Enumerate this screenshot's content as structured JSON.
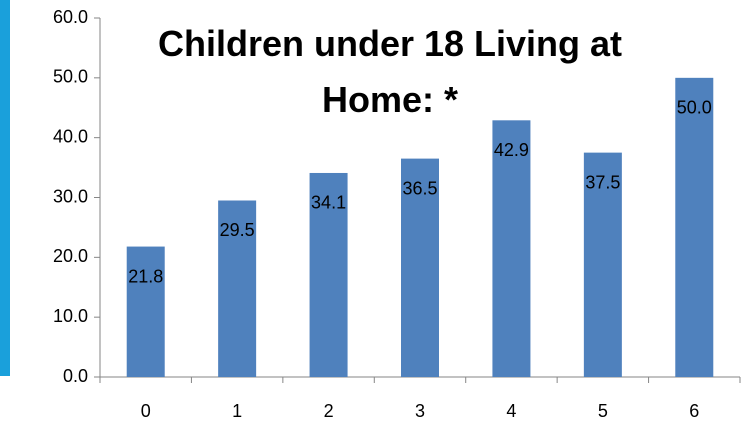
{
  "chart_data": {
    "type": "bar",
    "title": "Children under 18 Living at Home: *",
    "categories": [
      "0",
      "1",
      "2",
      "3",
      "4",
      "5",
      "6"
    ],
    "values": [
      21.8,
      29.5,
      34.1,
      36.5,
      42.9,
      37.5,
      50.0
    ],
    "value_labels": [
      "21.8",
      "29.5",
      "34.1",
      "36.5",
      "42.9",
      "37.5",
      "50.0"
    ],
    "color": "#4f81bd",
    "ylim": [
      0,
      60
    ],
    "yticks": [
      {
        "value": 0,
        "label": "0.0"
      },
      {
        "value": 10,
        "label": "10.0"
      },
      {
        "value": 20,
        "label": "20.0"
      },
      {
        "value": 30,
        "label": "30.0"
      },
      {
        "value": 40,
        "label": "40.0"
      },
      {
        "value": 50,
        "label": "50.0"
      },
      {
        "value": 60,
        "label": "60.0"
      }
    ],
    "grid": false
  }
}
